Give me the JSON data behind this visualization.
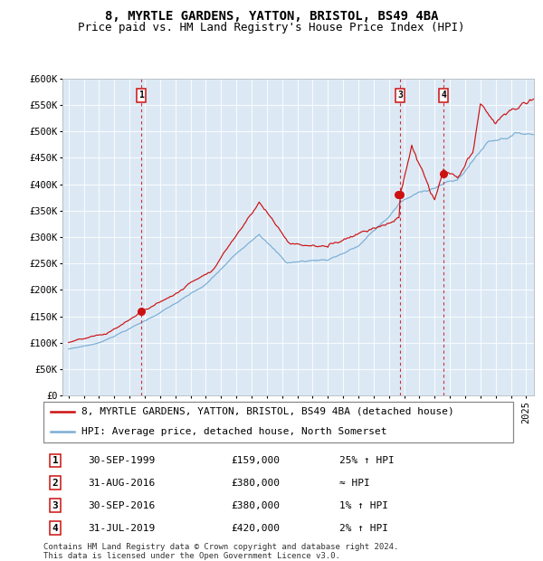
{
  "title": "8, MYRTLE GARDENS, YATTON, BRISTOL, BS49 4BA",
  "subtitle": "Price paid vs. HM Land Registry's House Price Index (HPI)",
  "bg_color": "#dce9f5",
  "hpi_color": "#7aadd4",
  "price_color": "#cc1111",
  "vline_color": "#cc1111",
  "ylim": [
    0,
    600000
  ],
  "yticks": [
    0,
    50000,
    100000,
    150000,
    200000,
    250000,
    300000,
    350000,
    400000,
    450000,
    500000,
    550000,
    600000
  ],
  "ytick_labels": [
    "£0",
    "£50K",
    "£100K",
    "£150K",
    "£200K",
    "£250K",
    "£300K",
    "£350K",
    "£400K",
    "£450K",
    "£500K",
    "£550K",
    "£600K"
  ],
  "xlim_start": 1994.6,
  "xlim_end": 2025.5,
  "xticks": [
    1995,
    1996,
    1997,
    1998,
    1999,
    2000,
    2001,
    2002,
    2003,
    2004,
    2005,
    2006,
    2007,
    2008,
    2009,
    2010,
    2011,
    2012,
    2013,
    2014,
    2015,
    2016,
    2017,
    2018,
    2019,
    2020,
    2021,
    2022,
    2023,
    2024,
    2025
  ],
  "legend_line1": "8, MYRTLE GARDENS, YATTON, BRISTOL, BS49 4BA (detached house)",
  "legend_line2": "HPI: Average price, detached house, North Somerset",
  "transactions": [
    {
      "num": 1,
      "date": "30-SEP-1999",
      "price": 159000,
      "year": 1999.75,
      "note": "25% ↑ HPI"
    },
    {
      "num": 2,
      "date": "31-AUG-2016",
      "price": 380000,
      "year": 2016.583,
      "note": "≈ HPI"
    },
    {
      "num": 3,
      "date": "30-SEP-2016",
      "price": 380000,
      "year": 2016.75,
      "note": "1% ↑ HPI"
    },
    {
      "num": 4,
      "date": "31-JUL-2019",
      "price": 420000,
      "year": 2019.583,
      "note": "2% ↑ HPI"
    }
  ],
  "footer": "Contains HM Land Registry data © Crown copyright and database right 2024.\nThis data is licensed under the Open Government Licence v3.0.",
  "title_fontsize": 10,
  "subtitle_fontsize": 9,
  "tick_fontsize": 7.5,
  "legend_fontsize": 8,
  "table_fontsize": 8,
  "footer_fontsize": 6.5
}
